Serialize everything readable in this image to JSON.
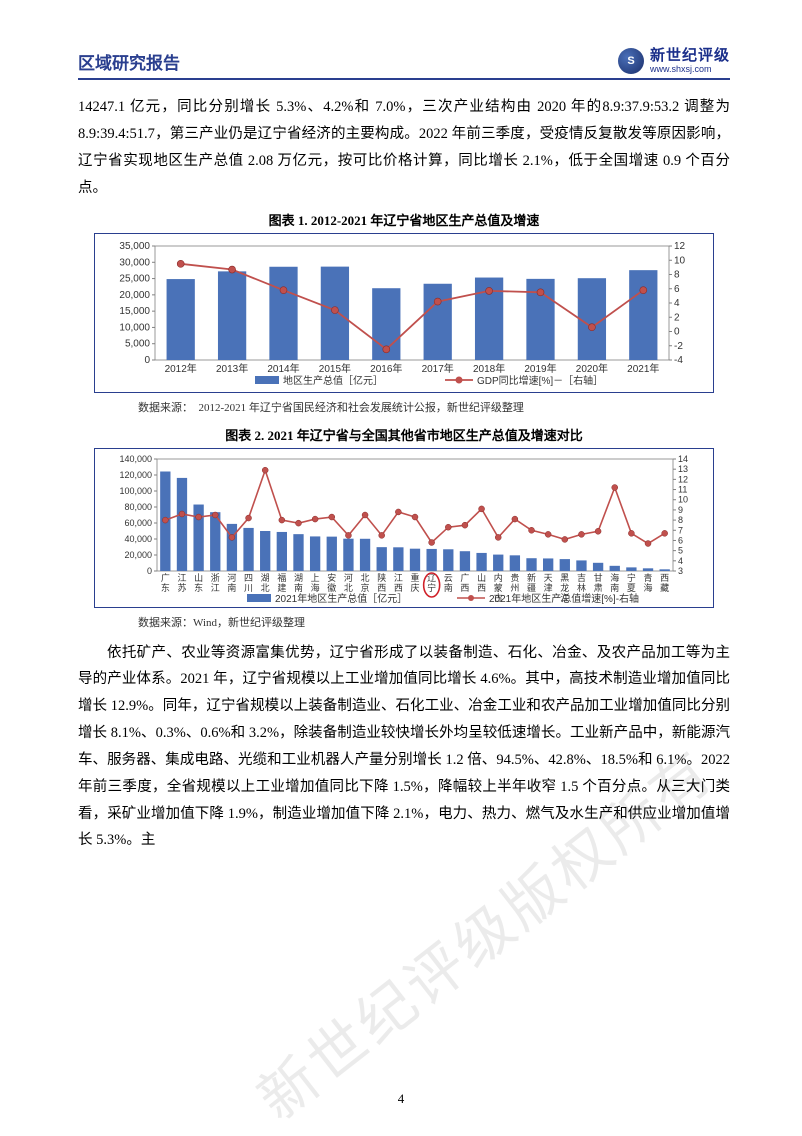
{
  "header": {
    "title": "区域研究报告",
    "logo_text": "新世纪评级",
    "logo_url": "www.shxsj.com",
    "logo_mark": "S"
  },
  "para1": "14247.1 亿元，同比分别增长 5.3%、4.2%和 7.0%，三次产业结构由 2020 年的8.9:37.9:53.2 调整为 8.9:39.4:51.7，第三产业仍是辽宁省经济的主要构成。2022 年前三季度，受疫情反复散发等原因影响，辽宁省实现地区生产总值 2.08 万亿元，按可比价格计算，同比增长 2.1%，低于全国增速 0.9 个百分点。",
  "chart1": {
    "title": "图表 1. 2012-2021 年辽宁省地区生产总值及增速",
    "type": "bar+line",
    "years": [
      "2012年",
      "2013年",
      "2014年",
      "2015年",
      "2016年",
      "2017年",
      "2018年",
      "2019年",
      "2020年",
      "2021年"
    ],
    "gdp_values": [
      24846,
      27213,
      28627,
      28669,
      22038,
      23409,
      25315,
      24909,
      25115,
      27584
    ],
    "growth_values": [
      9.5,
      8.7,
      5.8,
      3.0,
      -2.5,
      4.2,
      5.7,
      5.5,
      0.6,
      5.8
    ],
    "y1_ticks": [
      0,
      5000,
      10000,
      15000,
      20000,
      25000,
      30000,
      35000
    ],
    "y2_ticks": [
      -4,
      -2,
      0,
      2,
      4,
      6,
      8,
      10,
      12
    ],
    "bar_color": "#4a72b8",
    "line_color": "#c0504d",
    "border_color": "#808080",
    "tick_font": 10,
    "legend": {
      "bar": "地区生产总值［亿元］",
      "line": "GDP同比增速[%]－［右轴］"
    },
    "source": "数据来源：　2012-2021 年辽宁省国民经济和社会发展统计公报，新世纪评级整理"
  },
  "chart2": {
    "title": "图表 2. 2021 年辽宁省与全国其他省市地区生产总值及增速对比",
    "type": "bar+line",
    "provinces": [
      "广东",
      "江苏",
      "山东",
      "浙江",
      "河南",
      "四川",
      "湖北",
      "福建",
      "湖南",
      "上海",
      "安徽",
      "河北",
      "北京",
      "陕西",
      "江西",
      "重庆",
      "辽宁",
      "云南",
      "广西",
      "山西",
      "内蒙古",
      "贵州",
      "新疆",
      "天津",
      "黑龙江",
      "吉林",
      "甘肃",
      "海南",
      "宁夏",
      "青海",
      "西藏"
    ],
    "gdp_values": [
      124370,
      116364,
      83096,
      73516,
      58887,
      53851,
      50013,
      48810,
      46063,
      43215,
      42959,
      40391,
      40270,
      29801,
      29620,
      27894,
      27584,
      27147,
      24741,
      22590,
      20514,
      19586,
      15984,
      15695,
      14879,
      13236,
      10243,
      6475,
      4522,
      3347,
      2080
    ],
    "growth_values": [
      8.0,
      8.6,
      8.3,
      8.5,
      6.3,
      8.2,
      12.9,
      8.0,
      7.7,
      8.1,
      8.3,
      6.5,
      8.5,
      6.5,
      8.8,
      8.3,
      5.8,
      7.3,
      7.5,
      9.1,
      6.3,
      8.1,
      7.0,
      6.6,
      6.1,
      6.6,
      6.9,
      11.2,
      6.7,
      5.7,
      6.7
    ],
    "highlight_index": 16,
    "y1_ticks": [
      0,
      20000,
      40000,
      60000,
      80000,
      100000,
      120000,
      140000
    ],
    "y2_ticks": [
      3,
      4,
      5,
      6,
      7,
      8,
      9,
      10,
      11,
      12,
      13,
      14
    ],
    "bar_color": "#4a72b8",
    "line_color": "#c0504d",
    "highlight_color": "#d02028",
    "border_color": "#808080",
    "tick_font": 9,
    "legend": {
      "bar": "2021年地区生产总值［亿元］",
      "line": "2021年地区生产总值增速[%]-右轴"
    },
    "source": "数据来源：Wind，新世纪评级整理"
  },
  "para2": "依托矿产、农业等资源富集优势，辽宁省形成了以装备制造、石化、冶金、及农产品加工等为主导的产业体系。2021 年，辽宁省规模以上工业增加值同比增长 4.6%。其中，高技术制造业增加值同比增长 12.9%。同年，辽宁省规模以上装备制造业、石化工业、冶金工业和农产品加工业增加值同比分别增长 8.1%、0.3%、0.6%和 3.2%，除装备制造业较快增长外均呈较低速增长。工业新产品中，新能源汽车、服务器、集成电路、光缆和工业机器人产量分别增长 1.2 倍、94.5%、42.8%、18.5%和 6.1%。2022 年前三季度，全省规模以上工业增加值同比下降 1.5%，降幅较上半年收窄 1.5 个百分点。从三大门类看，采矿业增加值下降 1.9%，制造业增加值下降 2.1%，电力、热力、燃气及水生产和供应业增加值增长 5.3%。主",
  "page_number": "4",
  "watermark": "新世纪评级版权所有"
}
